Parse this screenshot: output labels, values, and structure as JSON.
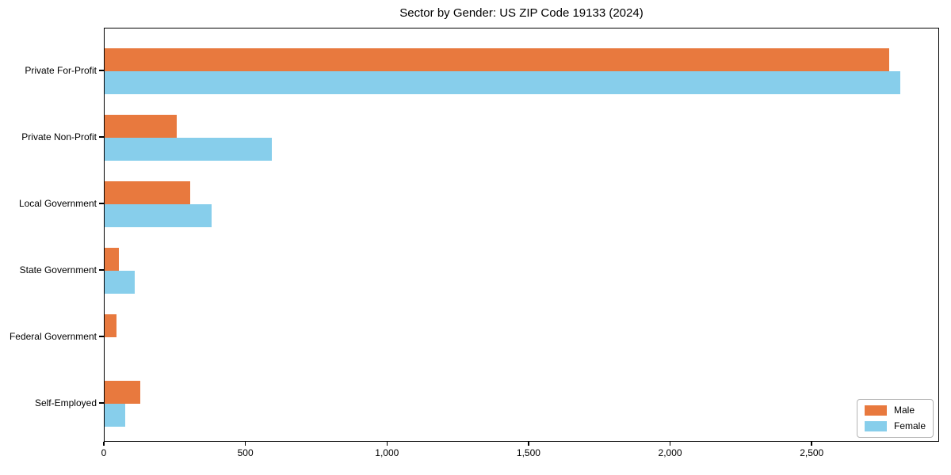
{
  "chart_data": {
    "type": "bar",
    "orientation": "horizontal",
    "title": "Sector by Gender: US ZIP Code 19133 (2024)",
    "categories": [
      "Private For-Profit",
      "Private Non-Profit",
      "Local Government",
      "State Government",
      "Federal Government",
      "Self-Employed"
    ],
    "series": [
      {
        "name": "Male",
        "color": "#e8793e",
        "values": [
          2770,
          255,
          303,
          49,
          43,
          126
        ]
      },
      {
        "name": "Female",
        "color": "#87ceeb",
        "values": [
          2810,
          590,
          378,
          105,
          0,
          74
        ]
      }
    ],
    "xlabel": "",
    "ylabel": "",
    "xlim": [
      0,
      2950
    ],
    "xticks": [
      0,
      500,
      1000,
      1500,
      2000,
      2500
    ],
    "xtick_labels": [
      "0",
      "500",
      "1,000",
      "1,500",
      "2,000",
      "2,500"
    ],
    "grid": false,
    "legend_position": "lower right",
    "background_color": "#ffffff",
    "axis_color": "#000000"
  }
}
